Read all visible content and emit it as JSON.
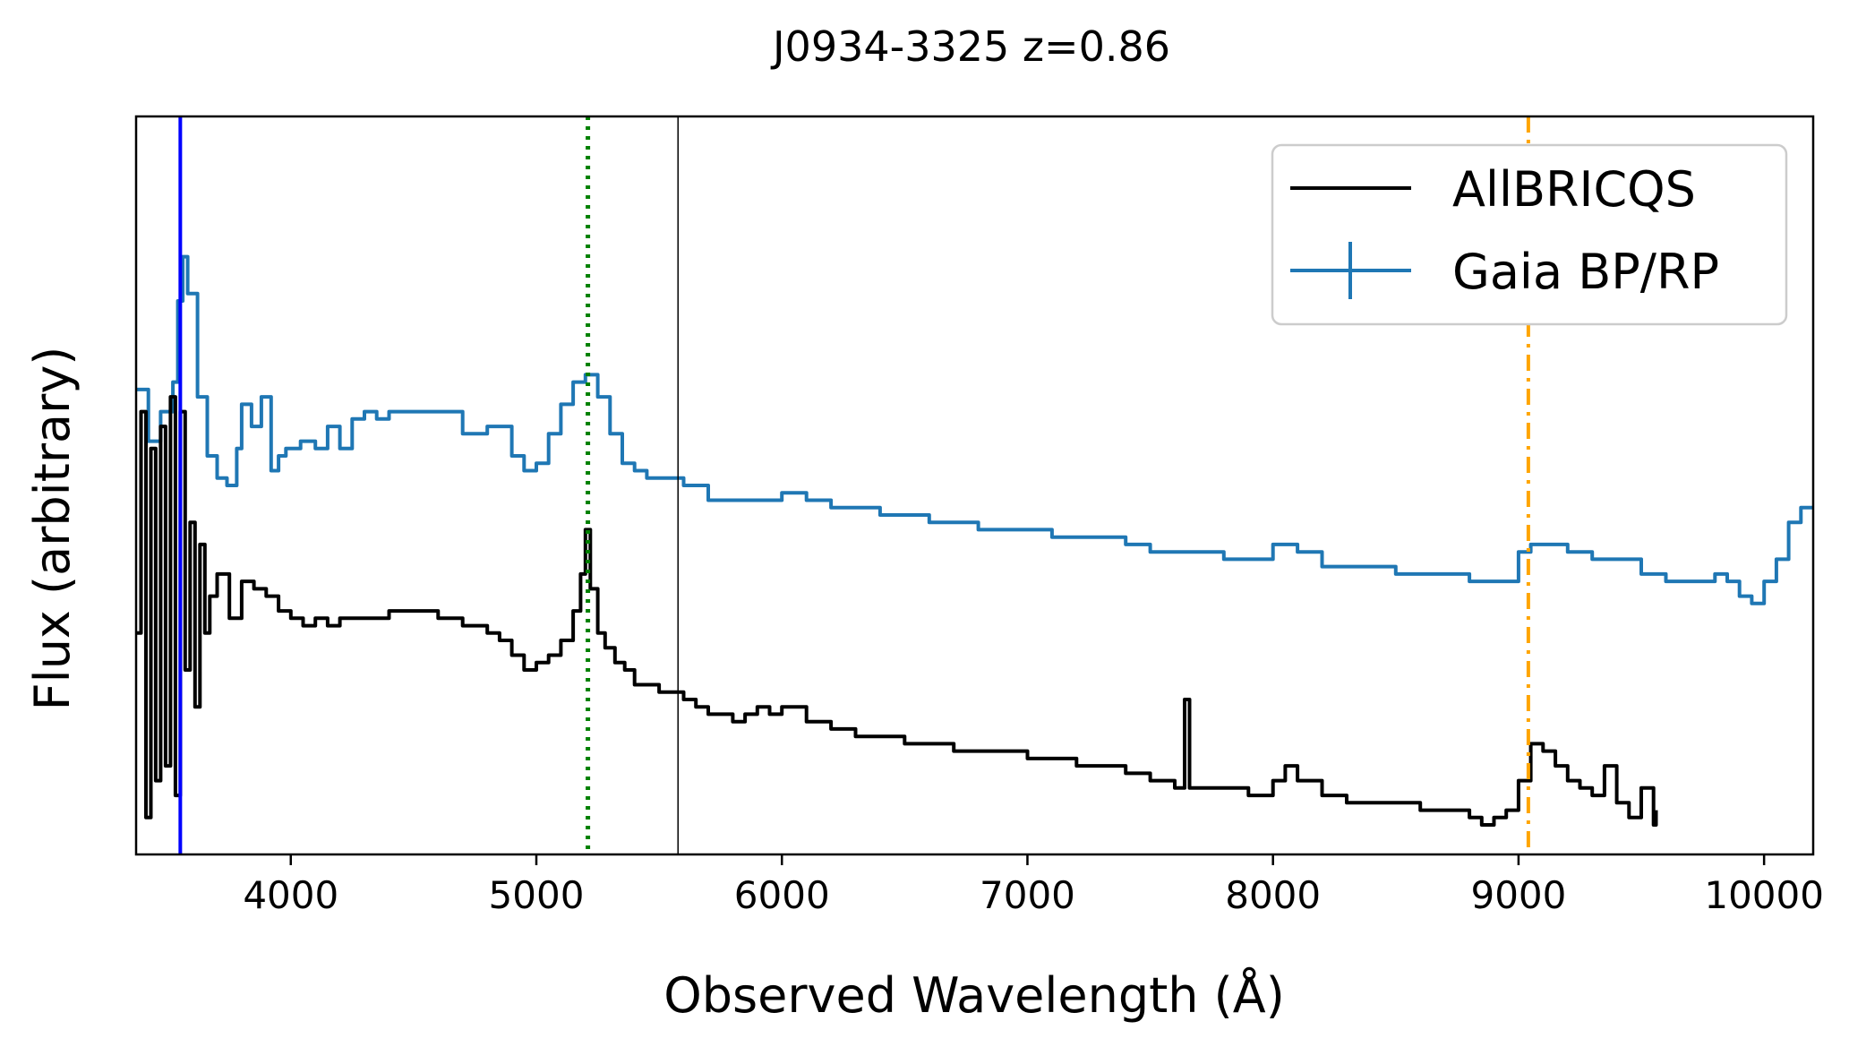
{
  "chart_data": {
    "type": "line",
    "title": "J0934-3325 z=0.86",
    "xlabel": "Observed Wavelength (Å)",
    "ylabel": "Flux (arbitrary)",
    "xlim": [
      3370,
      10200
    ],
    "ylim": [
      0,
      1
    ],
    "y_ticks_shown": false,
    "x_ticks": [
      4000,
      5000,
      6000,
      7000,
      8000,
      9000,
      10000
    ],
    "x_tick_labels": [
      "4000",
      "5000",
      "6000",
      "7000",
      "8000",
      "9000",
      "10000"
    ],
    "legend": {
      "position": "top-right",
      "entries": [
        {
          "label": "AllBRICQS",
          "color": "#000000",
          "style": "line"
        },
        {
          "label": "Gaia BP/RP",
          "color": "#1f77b4",
          "style": "errorbar"
        }
      ]
    },
    "vertical_lines": [
      {
        "name": "blue-line",
        "x": 3550,
        "color": "#0000ff",
        "style": "solid"
      },
      {
        "name": "green-dotted-line",
        "x": 5210,
        "color": "#008000",
        "style": "dotted"
      },
      {
        "name": "thin-black-line",
        "x": 5577,
        "color": "#000000",
        "style": "solid-thin"
      },
      {
        "name": "orange-dashdot-line",
        "x": 9040,
        "color": "#ffa500",
        "style": "dashdot"
      }
    ],
    "series": [
      {
        "name": "Gaia BP/RP",
        "color": "#1f77b4",
        "x": [
          3370,
          3420,
          3470,
          3520,
          3540,
          3560,
          3580,
          3620,
          3660,
          3700,
          3740,
          3780,
          3800,
          3840,
          3880,
          3920,
          3950,
          3980,
          4040,
          4100,
          4150,
          4200,
          4250,
          4300,
          4350,
          4400,
          4500,
          4600,
          4700,
          4800,
          4900,
          4950,
          5000,
          5050,
          5100,
          5150,
          5200,
          5250,
          5300,
          5350,
          5400,
          5450,
          5500,
          5600,
          5700,
          5800,
          5900,
          6000,
          6100,
          6200,
          6300,
          6400,
          6500,
          6600,
          6700,
          6800,
          6900,
          7000,
          7100,
          7200,
          7300,
          7400,
          7500,
          7600,
          7700,
          7800,
          7900,
          8000,
          8100,
          8200,
          8300,
          8400,
          8500,
          8600,
          8700,
          8800,
          8850,
          8900,
          9000,
          9050,
          9100,
          9200,
          9300,
          9400,
          9500,
          9600,
          9700,
          9800,
          9850,
          9900,
          9950,
          10000,
          10050,
          10100,
          10150,
          10200
        ],
        "y": [
          0.63,
          0.56,
          0.6,
          0.64,
          0.75,
          0.81,
          0.76,
          0.62,
          0.54,
          0.51,
          0.5,
          0.55,
          0.61,
          0.58,
          0.62,
          0.52,
          0.54,
          0.55,
          0.56,
          0.55,
          0.58,
          0.55,
          0.59,
          0.6,
          0.59,
          0.6,
          0.6,
          0.6,
          0.57,
          0.58,
          0.54,
          0.52,
          0.53,
          0.57,
          0.61,
          0.64,
          0.65,
          0.62,
          0.57,
          0.53,
          0.52,
          0.51,
          0.51,
          0.5,
          0.48,
          0.48,
          0.48,
          0.49,
          0.48,
          0.47,
          0.47,
          0.46,
          0.46,
          0.45,
          0.45,
          0.44,
          0.44,
          0.44,
          0.43,
          0.43,
          0.43,
          0.42,
          0.41,
          0.41,
          0.41,
          0.4,
          0.4,
          0.42,
          0.41,
          0.39,
          0.39,
          0.39,
          0.38,
          0.38,
          0.38,
          0.37,
          0.37,
          0.37,
          0.41,
          0.42,
          0.42,
          0.41,
          0.4,
          0.4,
          0.38,
          0.37,
          0.37,
          0.38,
          0.37,
          0.35,
          0.34,
          0.37,
          0.4,
          0.45,
          0.47,
          0.47
        ]
      },
      {
        "name": "AllBRICQS",
        "color": "#000000",
        "x": [
          3370,
          3390,
          3410,
          3430,
          3450,
          3470,
          3490,
          3510,
          3530,
          3550,
          3570,
          3590,
          3610,
          3630,
          3650,
          3670,
          3700,
          3750,
          3800,
          3850,
          3900,
          3950,
          4000,
          4050,
          4100,
          4150,
          4200,
          4300,
          4400,
          4500,
          4600,
          4700,
          4800,
          4850,
          4900,
          4950,
          5000,
          5050,
          5100,
          5150,
          5180,
          5200,
          5220,
          5250,
          5280,
          5320,
          5360,
          5400,
          5450,
          5500,
          5550,
          5600,
          5650,
          5700,
          5800,
          5850,
          5900,
          5950,
          6000,
          6100,
          6200,
          6300,
          6400,
          6500,
          6600,
          6700,
          6800,
          6900,
          7000,
          7100,
          7200,
          7300,
          7400,
          7500,
          7550,
          7600,
          7640,
          7660,
          7700,
          7800,
          7900,
          8000,
          8050,
          8100,
          8200,
          8300,
          8400,
          8500,
          8600,
          8700,
          8800,
          8850,
          8900,
          8950,
          9000,
          9050,
          9100,
          9150,
          9200,
          9250,
          9300,
          9350,
          9400,
          9450,
          9500,
          9550,
          9560
        ],
        "y": [
          0.3,
          0.6,
          0.05,
          0.55,
          0.1,
          0.58,
          0.12,
          0.62,
          0.08,
          0.6,
          0.25,
          0.45,
          0.2,
          0.42,
          0.3,
          0.35,
          0.38,
          0.32,
          0.37,
          0.36,
          0.35,
          0.33,
          0.32,
          0.31,
          0.32,
          0.31,
          0.32,
          0.32,
          0.33,
          0.33,
          0.32,
          0.31,
          0.3,
          0.29,
          0.27,
          0.25,
          0.26,
          0.27,
          0.29,
          0.33,
          0.38,
          0.44,
          0.36,
          0.3,
          0.28,
          0.26,
          0.25,
          0.23,
          0.23,
          0.22,
          0.22,
          0.21,
          0.2,
          0.19,
          0.18,
          0.19,
          0.2,
          0.19,
          0.2,
          0.18,
          0.17,
          0.16,
          0.16,
          0.15,
          0.15,
          0.14,
          0.14,
          0.14,
          0.13,
          0.13,
          0.12,
          0.12,
          0.11,
          0.1,
          0.1,
          0.09,
          0.21,
          0.09,
          0.09,
          0.09,
          0.08,
          0.1,
          0.12,
          0.1,
          0.08,
          0.07,
          0.07,
          0.07,
          0.06,
          0.06,
          0.05,
          0.04,
          0.05,
          0.06,
          0.1,
          0.15,
          0.14,
          0.12,
          0.1,
          0.09,
          0.08,
          0.12,
          0.07,
          0.05,
          0.09,
          0.04,
          0.06
        ]
      }
    ]
  }
}
